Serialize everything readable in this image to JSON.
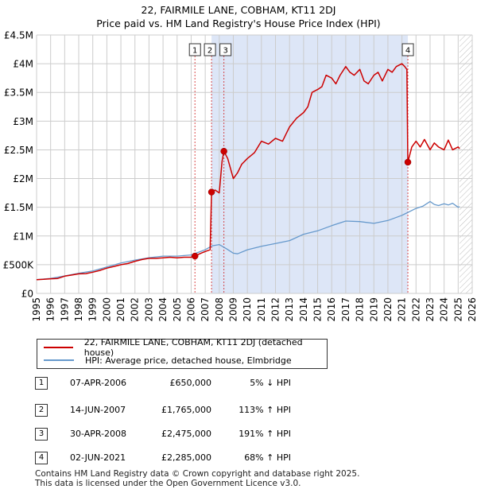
{
  "title": {
    "line1": "22, FAIRMILE LANE, COBHAM, KT11 2DJ",
    "line2": "Price paid vs. HM Land Registry's House Price Index (HPI)"
  },
  "legend": {
    "property": "22, FAIRMILE LANE, COBHAM, KT11 2DJ (detached house)",
    "hpi": "HPI: Average price, detached house, Elmbridge"
  },
  "transactions": [
    {
      "num": "1",
      "date": "07-APR-2006",
      "price": "£650,000",
      "hpi": "5% ↓ HPI"
    },
    {
      "num": "2",
      "date": "14-JUN-2007",
      "price": "£1,765,000",
      "hpi": "113% ↑ HPI"
    },
    {
      "num": "3",
      "date": "30-APR-2008",
      "price": "£2,475,000",
      "hpi": "191% ↑ HPI"
    },
    {
      "num": "4",
      "date": "02-JUN-2021",
      "price": "£2,285,000",
      "hpi": "68% ↑ HPI"
    }
  ],
  "footer": {
    "line1": "Contains HM Land Registry data © Crown copyright and database right 2025.",
    "line2": "This data is licensed under the Open Government Licence v3.0."
  },
  "colors": {
    "property": "#cc0000",
    "hpi": "#6699cc",
    "shade": "#dde6f7",
    "grid": "#cccccc",
    "hatch": "#bbbbbb"
  },
  "chart_data": {
    "type": "line",
    "xlim": [
      1995,
      2026
    ],
    "ylim": [
      0,
      4500000
    ],
    "yticks": [
      0,
      500000,
      1000000,
      1500000,
      2000000,
      2500000,
      3000000,
      3500000,
      4000000,
      4500000
    ],
    "ytick_labels": [
      "£0",
      "£500K",
      "£1M",
      "£1.5M",
      "£2M",
      "£2.5M",
      "£3M",
      "£3.5M",
      "£4M",
      "£4.5M"
    ],
    "xticks": [
      1995,
      1996,
      1997,
      1998,
      1999,
      2000,
      2001,
      2002,
      2003,
      2004,
      2005,
      2006,
      2007,
      2008,
      2009,
      2010,
      2011,
      2012,
      2013,
      2014,
      2015,
      2016,
      2017,
      2018,
      2019,
      2020,
      2021,
      2022,
      2023,
      2024,
      2025,
      2026
    ],
    "xtick_labels": [
      "1995",
      "1996",
      "1997",
      "1998",
      "1999",
      "2000",
      "2001",
      "2002",
      "2003",
      "2004",
      "2005",
      "2006",
      "2007",
      "2008",
      "2009",
      "2010",
      "2011",
      "2012",
      "2013",
      "2014",
      "2015",
      "2016",
      "2017",
      "2018",
      "2019",
      "2020",
      "2021",
      "2022",
      "2023",
      "2024",
      "2025",
      "2026"
    ],
    "shaded_period": [
      2007.45,
      2021.42
    ],
    "future_from": 2025.1,
    "sales": [
      {
        "label": "1",
        "x": 2006.27,
        "y": 650000
      },
      {
        "label": "2",
        "x": 2007.45,
        "y": 1765000
      },
      {
        "label": "3",
        "x": 2008.33,
        "y": 2475000
      },
      {
        "label": "4",
        "x": 2021.42,
        "y": 2285000
      }
    ],
    "series": [
      {
        "name": "22, FAIRMILE LANE, COBHAM, KT11 2DJ (detached house)",
        "x": [
          1995,
          1995.5,
          1996,
          1996.5,
          1997,
          1997.5,
          1998,
          1998.5,
          1999,
          1999.5,
          2000,
          2000.5,
          2001,
          2001.5,
          2002,
          2002.5,
          2003,
          2003.5,
          2004,
          2004.5,
          2005,
          2005.5,
          2006,
          2006.27,
          2006.6,
          2007,
          2007.35,
          2007.45,
          2007.7,
          2008,
          2008.2,
          2008.33,
          2008.6,
          2009,
          2009.3,
          2009.6,
          2010,
          2010.5,
          2011,
          2011.5,
          2012,
          2012.5,
          2013,
          2013.5,
          2014,
          2014.3,
          2014.6,
          2015,
          2015.3,
          2015.6,
          2016,
          2016.3,
          2016.6,
          2017,
          2017.3,
          2017.6,
          2018,
          2018.3,
          2018.6,
          2019,
          2019.3,
          2019.6,
          2020,
          2020.3,
          2020.6,
          2021,
          2021.2,
          2021.35,
          2021.42,
          2021.7,
          2022,
          2022.3,
          2022.6,
          2023,
          2023.3,
          2023.6,
          2024,
          2024.3,
          2024.6,
          2025,
          2025.1
        ],
        "values": [
          240000,
          245000,
          255000,
          260000,
          300000,
          320000,
          340000,
          345000,
          370000,
          400000,
          440000,
          470000,
          500000,
          520000,
          560000,
          590000,
          610000,
          610000,
          620000,
          630000,
          620000,
          630000,
          630000,
          650000,
          690000,
          730000,
          760000,
          1765000,
          1800000,
          1750000,
          2300000,
          2475000,
          2350000,
          2000000,
          2100000,
          2250000,
          2350000,
          2450000,
          2650000,
          2600000,
          2700000,
          2650000,
          2900000,
          3050000,
          3150000,
          3250000,
          3500000,
          3550000,
          3600000,
          3800000,
          3750000,
          3650000,
          3800000,
          3950000,
          3850000,
          3800000,
          3900000,
          3700000,
          3650000,
          3800000,
          3850000,
          3700000,
          3900000,
          3850000,
          3950000,
          4000000,
          3950000,
          3900000,
          2285000,
          2550000,
          2650000,
          2550000,
          2680000,
          2500000,
          2620000,
          2550000,
          2500000,
          2670000,
          2500000,
          2550000,
          2520000
        ]
      },
      {
        "name": "HPI: Average price, detached house, Elmbridge",
        "x": [
          1995,
          1996,
          1997,
          1998,
          1999,
          2000,
          2001,
          2002,
          2003,
          2004,
          2005,
          2006,
          2007,
          2007.5,
          2008,
          2008.5,
          2009,
          2009.3,
          2010,
          2011,
          2012,
          2013,
          2014,
          2015,
          2016,
          2017,
          2018,
          2019,
          2020,
          2021,
          2022,
          2022.5,
          2023,
          2023.3,
          2023.6,
          2024,
          2024.3,
          2024.6,
          2025,
          2025.1
        ],
        "values": [
          240000,
          260000,
          305000,
          350000,
          390000,
          460000,
          530000,
          580000,
          620000,
          650000,
          650000,
          670000,
          760000,
          830000,
          850000,
          780000,
          700000,
          690000,
          760000,
          820000,
          870000,
          920000,
          1030000,
          1090000,
          1180000,
          1260000,
          1250000,
          1220000,
          1270000,
          1360000,
          1480000,
          1520000,
          1600000,
          1550000,
          1530000,
          1560000,
          1540000,
          1570000,
          1500000,
          1510000
        ]
      }
    ]
  }
}
